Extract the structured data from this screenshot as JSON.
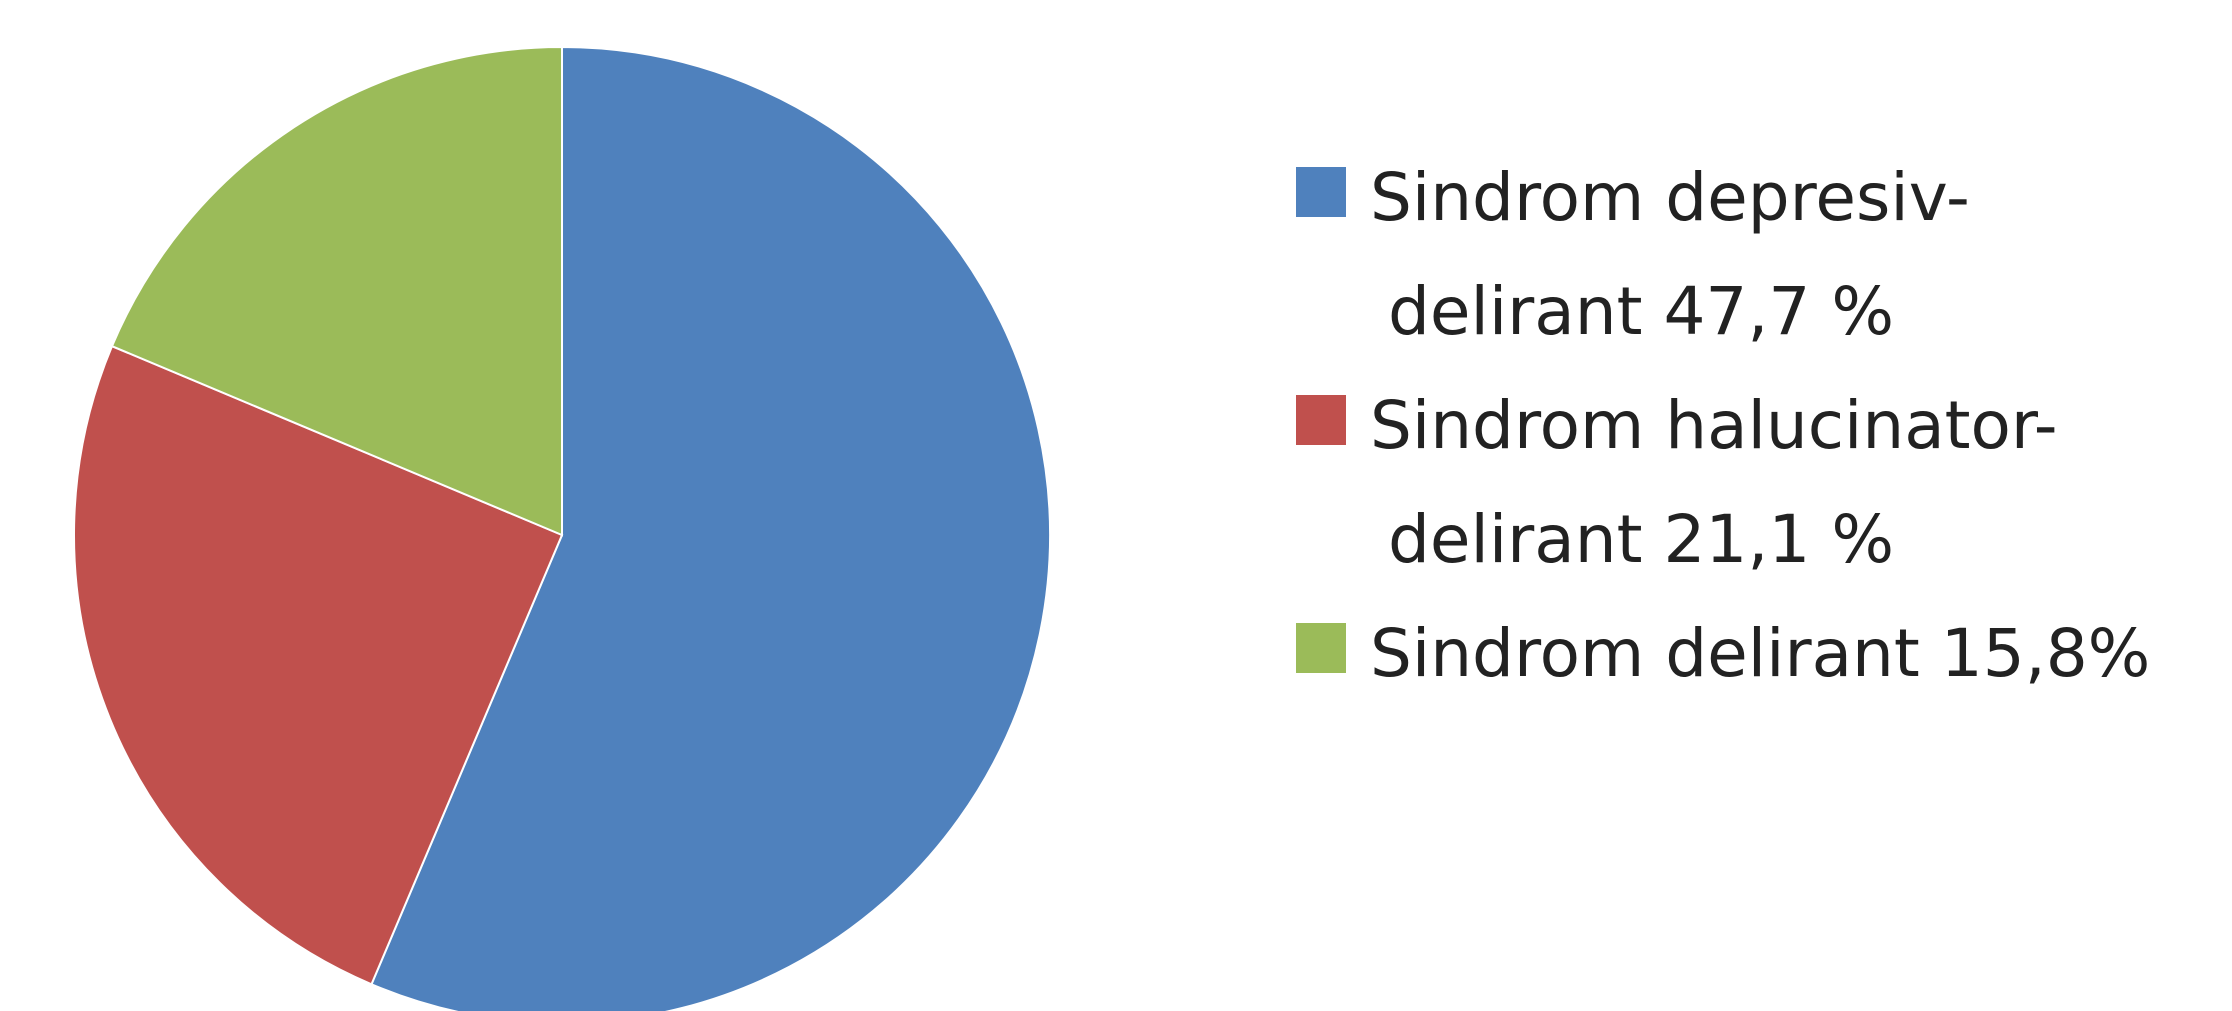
{
  "chart_data": {
    "type": "pie",
    "title": "",
    "slices": [
      {
        "label_lines": [
          "Sindrom depresiv-",
          "delirant 47,7 %"
        ],
        "value": 47.7,
        "color": "#4F81BD"
      },
      {
        "label_lines": [
          "Sindrom halucinator-",
          "delirant 21,1 %"
        ],
        "value": 21.1,
        "color": "#C0504D"
      },
      {
        "label_lines": [
          "Sindrom delirant 15,8%"
        ],
        "value": 15.8,
        "color": "#9BBB59"
      }
    ],
    "start_angle_deg": 0,
    "direction": "clockwise",
    "legend_position": "right"
  }
}
